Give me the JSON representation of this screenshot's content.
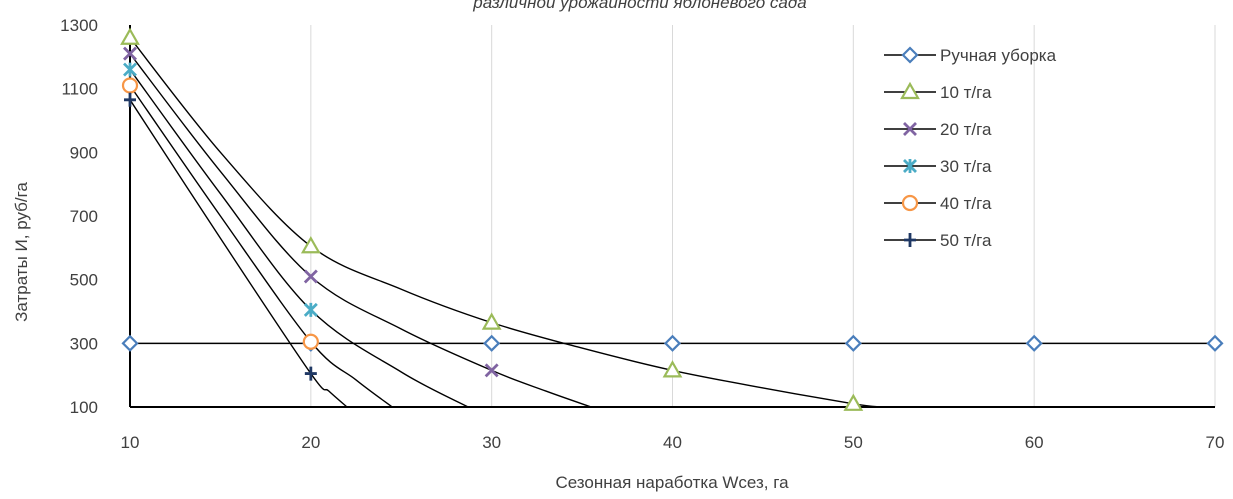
{
  "chart_data": {
    "type": "line",
    "title": "различной урожайности яблоневого сада",
    "xlabel": "Сезонная наработка Wсез, га",
    "ylabel": "Затраты И, руб/га",
    "xlim": [
      10,
      70
    ],
    "ylim": [
      100,
      1300
    ],
    "xticks": [
      10,
      20,
      30,
      40,
      50,
      60,
      70
    ],
    "yticks": [
      100,
      300,
      500,
      700,
      900,
      1100,
      1300
    ],
    "grid": "vertical",
    "legend_position": "top-right",
    "series": [
      {
        "name": "Ручная уборка",
        "marker": "diamond",
        "color": "#4a7ebb",
        "x": [
          10,
          20,
          30,
          40,
          50,
          60,
          70
        ],
        "y": [
          300,
          300,
          300,
          300,
          300,
          300,
          300
        ]
      },
      {
        "name": "10 т/га",
        "marker": "triangle",
        "color": "#9bbb59",
        "x": [
          10,
          20,
          30,
          40,
          50
        ],
        "y": [
          1260,
          605,
          365,
          215,
          110
        ]
      },
      {
        "name": "20 т/га",
        "marker": "x",
        "color": "#8064a2",
        "x": [
          10,
          20,
          30
        ],
        "y": [
          1210,
          510,
          215
        ]
      },
      {
        "name": "30 т/га",
        "marker": "star",
        "color": "#4bacc6",
        "x": [
          10,
          20
        ],
        "y": [
          1160,
          405
        ]
      },
      {
        "name": "40 т/га",
        "marker": "circle",
        "color": "#f79646",
        "x": [
          10,
          20
        ],
        "y": [
          1110,
          305
        ]
      },
      {
        "name": "50 т/га",
        "marker": "plus",
        "color": "#1f3864",
        "x": [
          10,
          20
        ],
        "y": [
          1065,
          205
        ]
      }
    ],
    "curves": [
      {
        "series": "10 т/га",
        "x": [
          10,
          15,
          20,
          25,
          30,
          35,
          40,
          45,
          50,
          51.5
        ],
        "y": [
          1260,
          900,
          605,
          470,
          365,
          285,
          215,
          160,
          110,
          100
        ]
      },
      {
        "series": "20 т/га",
        "x": [
          10,
          15,
          20,
          25,
          30,
          33,
          35.5
        ],
        "y": [
          1210,
          840,
          510,
          345,
          215,
          150,
          100
        ]
      },
      {
        "series": "30 т/га",
        "x": [
          10,
          15,
          20,
          25,
          28.7
        ],
        "y": [
          1160,
          770,
          405,
          210,
          100
        ]
      },
      {
        "series": "40 т/га",
        "x": [
          10,
          15,
          20,
          22.5,
          24.5
        ],
        "y": [
          1110,
          700,
          305,
          185,
          100
        ]
      },
      {
        "series": "50 т/га",
        "x": [
          10,
          15,
          20,
          21,
          22
        ],
        "y": [
          1065,
          630,
          205,
          150,
          100
        ]
      }
    ]
  }
}
